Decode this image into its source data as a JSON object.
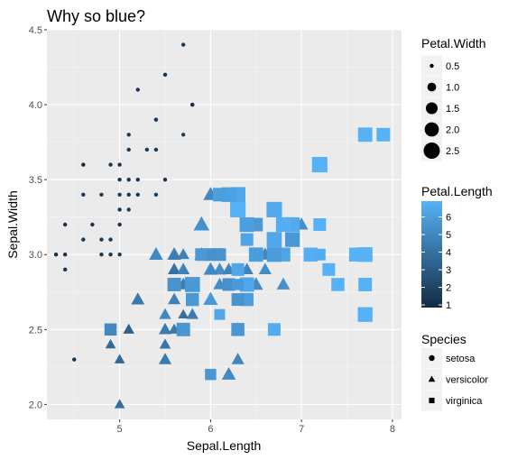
{
  "chart_data": {
    "type": "scatter",
    "title": "Why so blue?",
    "xlabel": "Sepal.Length",
    "ylabel": "Sepal.Width",
    "xlim": [
      4.2,
      8.1
    ],
    "ylim": [
      1.9,
      4.5
    ],
    "xticks": [
      "5",
      "6",
      "7",
      "8"
    ],
    "yticks": [
      "2.0",
      "2.5",
      "3.0",
      "3.5",
      "4.0",
      "4.5"
    ],
    "grid": true,
    "legends": {
      "size": {
        "title": "Petal.Width",
        "labels": [
          "0.5",
          "1.0",
          "1.5",
          "2.0",
          "2.5"
        ],
        "values": [
          0.5,
          1.0,
          1.5,
          2.0,
          2.5
        ]
      },
      "color": {
        "title": "Petal.Length",
        "labels": [
          "6",
          "5",
          "4",
          "3",
          "2",
          "1"
        ],
        "values": [
          6,
          5,
          4,
          3,
          2,
          1
        ],
        "low_color": "#132B43",
        "high_color": "#56B1F7"
      },
      "shape": {
        "title": "Species",
        "labels": [
          "setosa",
          "versicolor",
          "virginica"
        ],
        "shapes": [
          "circle",
          "triangle",
          "square"
        ]
      }
    },
    "legend_position": "right",
    "panel_background": "#ebebeb",
    "grid_color": "#ffffff",
    "series": [
      {
        "species": "setosa",
        "shape": "circle",
        "points": [
          [
            5.7,
            4.4,
            1.5,
            0.4
          ],
          [
            5.4,
            3.9,
            1.3,
            0.4
          ],
          [
            5.8,
            4.0,
            1.2,
            0.2
          ],
          [
            5.2,
            4.1,
            1.5,
            0.1
          ],
          [
            5.5,
            4.2,
            1.4,
            0.2
          ],
          [
            5.4,
            3.9,
            1.7,
            0.4
          ],
          [
            5.1,
            3.8,
            1.6,
            0.2
          ],
          [
            5.7,
            3.8,
            1.7,
            0.3
          ],
          [
            5.3,
            3.7,
            1.5,
            0.2
          ],
          [
            5.1,
            3.7,
            1.5,
            0.4
          ],
          [
            5.4,
            3.7,
            1.5,
            0.2
          ],
          [
            5.0,
            3.6,
            1.4,
            0.2
          ],
          [
            4.6,
            3.6,
            1.0,
            0.2
          ],
          [
            5.1,
            3.5,
            1.4,
            0.2
          ],
          [
            5.0,
            3.5,
            1.3,
            0.3
          ],
          [
            5.2,
            3.5,
            1.5,
            0.2
          ],
          [
            5.5,
            3.5,
            1.3,
            0.2
          ],
          [
            5.1,
            3.4,
            1.5,
            0.2
          ],
          [
            4.8,
            3.4,
            1.6,
            0.2
          ],
          [
            5.0,
            3.4,
            1.6,
            0.4
          ],
          [
            5.4,
            3.4,
            1.7,
            0.2
          ],
          [
            4.6,
            3.4,
            1.4,
            0.3
          ],
          [
            5.0,
            3.3,
            1.4,
            0.2
          ],
          [
            5.1,
            3.3,
            1.7,
            0.5
          ],
          [
            4.7,
            3.2,
            1.3,
            0.2
          ],
          [
            4.6,
            3.1,
            1.5,
            0.2
          ],
          [
            4.9,
            3.1,
            1.5,
            0.1
          ],
          [
            4.8,
            3.1,
            1.6,
            0.2
          ],
          [
            4.4,
            3.2,
            1.3,
            0.2
          ],
          [
            5.0,
            3.2,
            1.2,
            0.2
          ],
          [
            4.4,
            2.9,
            1.4,
            0.2
          ],
          [
            4.3,
            3.0,
            1.1,
            0.1
          ],
          [
            4.4,
            3.0,
            1.3,
            0.2
          ],
          [
            4.8,
            3.0,
            1.4,
            0.1
          ],
          [
            4.9,
            3.0,
            1.4,
            0.2
          ],
          [
            5.0,
            3.0,
            1.6,
            0.2
          ],
          [
            4.5,
            2.3,
            1.3,
            0.3
          ],
          [
            5.8,
            4.0,
            1.2,
            0.2
          ],
          [
            4.9,
            3.6,
            1.4,
            0.1
          ],
          [
            5.2,
            3.4,
            1.4,
            0.2
          ]
        ]
      },
      {
        "species": "versicolor",
        "shape": "triangle",
        "points": [
          [
            7.0,
            3.2,
            4.7,
            1.4
          ],
          [
            6.4,
            3.2,
            4.5,
            1.5
          ],
          [
            6.9,
            3.1,
            4.9,
            1.5
          ],
          [
            5.5,
            2.3,
            4.0,
            1.3
          ],
          [
            6.5,
            2.8,
            4.6,
            1.5
          ],
          [
            5.7,
            2.8,
            4.5,
            1.3
          ],
          [
            6.3,
            3.3,
            4.7,
            1.6
          ],
          [
            4.9,
            2.4,
            3.3,
            1.0
          ],
          [
            6.6,
            2.9,
            4.6,
            1.3
          ],
          [
            5.2,
            2.7,
            3.9,
            1.4
          ],
          [
            5.0,
            2.0,
            3.5,
            1.0
          ],
          [
            5.9,
            3.0,
            4.2,
            1.5
          ],
          [
            6.0,
            2.2,
            4.0,
            1.0
          ],
          [
            6.1,
            2.9,
            4.7,
            1.4
          ],
          [
            5.6,
            2.9,
            3.6,
            1.3
          ],
          [
            6.7,
            3.1,
            4.4,
            1.4
          ],
          [
            5.6,
            3.0,
            4.5,
            1.5
          ],
          [
            5.8,
            2.7,
            4.1,
            1.0
          ],
          [
            6.2,
            2.2,
            4.5,
            1.5
          ],
          [
            5.6,
            2.5,
            3.9,
            1.1
          ],
          [
            5.9,
            3.2,
            4.8,
            1.8
          ],
          [
            6.1,
            2.8,
            4.0,
            1.3
          ],
          [
            6.3,
            2.5,
            4.9,
            1.5
          ],
          [
            6.1,
            2.8,
            4.7,
            1.2
          ],
          [
            6.4,
            2.9,
            4.3,
            1.3
          ],
          [
            6.6,
            3.0,
            4.4,
            1.4
          ],
          [
            6.8,
            2.8,
            4.8,
            1.4
          ],
          [
            6.7,
            3.0,
            5.0,
            1.7
          ],
          [
            6.0,
            2.9,
            4.5,
            1.5
          ],
          [
            5.7,
            2.6,
            3.5,
            1.0
          ],
          [
            5.5,
            2.4,
            3.8,
            1.1
          ],
          [
            5.5,
            2.4,
            3.7,
            1.0
          ],
          [
            5.8,
            2.7,
            3.9,
            1.2
          ],
          [
            6.0,
            2.7,
            5.1,
            1.6
          ],
          [
            5.4,
            3.0,
            4.5,
            1.5
          ],
          [
            6.0,
            3.4,
            4.5,
            1.6
          ],
          [
            6.7,
            3.1,
            4.7,
            1.5
          ],
          [
            6.3,
            2.3,
            4.4,
            1.3
          ],
          [
            5.6,
            3.0,
            4.1,
            1.3
          ],
          [
            5.5,
            2.5,
            4.0,
            1.3
          ],
          [
            5.5,
            2.6,
            4.4,
            1.2
          ],
          [
            6.1,
            3.0,
            4.6,
            1.4
          ],
          [
            5.8,
            2.6,
            4.0,
            1.2
          ],
          [
            5.0,
            2.3,
            3.3,
            1.0
          ],
          [
            5.6,
            2.7,
            4.2,
            1.3
          ],
          [
            5.7,
            3.0,
            4.2,
            1.2
          ],
          [
            5.7,
            2.9,
            4.2,
            1.3
          ],
          [
            6.2,
            2.9,
            4.3,
            1.3
          ],
          [
            5.1,
            2.5,
            3.0,
            1.1
          ],
          [
            5.7,
            2.8,
            4.1,
            1.3
          ]
        ]
      },
      {
        "species": "virginica",
        "shape": "square",
        "points": [
          [
            6.3,
            3.3,
            6.0,
            2.5
          ],
          [
            5.8,
            2.7,
            5.1,
            1.9
          ],
          [
            7.1,
            3.0,
            5.9,
            2.1
          ],
          [
            6.3,
            2.9,
            5.6,
            1.8
          ],
          [
            6.5,
            3.0,
            5.8,
            2.2
          ],
          [
            7.6,
            3.0,
            6.6,
            2.1
          ],
          [
            4.9,
            2.5,
            4.5,
            1.7
          ],
          [
            7.3,
            2.9,
            6.3,
            1.8
          ],
          [
            6.7,
            2.5,
            5.8,
            1.8
          ],
          [
            7.2,
            3.6,
            6.1,
            2.5
          ],
          [
            6.5,
            3.2,
            5.1,
            2.0
          ],
          [
            6.4,
            2.7,
            5.3,
            1.9
          ],
          [
            6.8,
            3.0,
            5.5,
            2.1
          ],
          [
            5.7,
            2.5,
            5.0,
            2.0
          ],
          [
            5.8,
            2.8,
            5.1,
            2.4
          ],
          [
            6.4,
            3.2,
            5.3,
            2.3
          ],
          [
            6.5,
            3.0,
            5.5,
            1.8
          ],
          [
            7.7,
            3.8,
            6.7,
            2.2
          ],
          [
            7.7,
            2.6,
            6.9,
            2.3
          ],
          [
            6.0,
            2.2,
            5.0,
            1.5
          ],
          [
            6.9,
            3.2,
            5.7,
            2.3
          ],
          [
            5.6,
            2.8,
            4.9,
            2.0
          ],
          [
            7.7,
            2.8,
            6.7,
            2.0
          ],
          [
            6.3,
            2.7,
            4.9,
            1.8
          ],
          [
            6.7,
            3.3,
            5.7,
            2.1
          ],
          [
            7.2,
            3.2,
            6.0,
            1.8
          ],
          [
            6.2,
            2.8,
            4.8,
            1.8
          ],
          [
            6.1,
            3.0,
            4.9,
            1.8
          ],
          [
            6.4,
            2.8,
            5.6,
            2.1
          ],
          [
            7.2,
            3.0,
            5.8,
            1.6
          ],
          [
            7.4,
            2.8,
            6.1,
            1.9
          ],
          [
            7.9,
            3.8,
            6.4,
            2.0
          ],
          [
            6.4,
            2.8,
            5.6,
            2.2
          ],
          [
            6.3,
            2.8,
            5.1,
            1.5
          ],
          [
            6.1,
            2.6,
            5.6,
            1.4
          ],
          [
            7.7,
            3.0,
            6.1,
            2.3
          ],
          [
            6.3,
            3.4,
            5.6,
            2.4
          ],
          [
            6.4,
            3.1,
            5.5,
            1.8
          ],
          [
            6.0,
            3.0,
            4.8,
            1.8
          ],
          [
            6.9,
            3.1,
            5.4,
            2.1
          ],
          [
            6.7,
            3.1,
            5.6,
            2.4
          ],
          [
            6.9,
            3.1,
            5.1,
            2.3
          ],
          [
            6.8,
            3.2,
            5.9,
            2.3
          ],
          [
            6.7,
            3.3,
            5.7,
            2.5
          ],
          [
            6.7,
            3.0,
            5.2,
            2.3
          ],
          [
            6.3,
            2.5,
            5.0,
            1.9
          ],
          [
            6.5,
            3.0,
            5.2,
            2.0
          ],
          [
            6.2,
            3.4,
            5.4,
            2.3
          ],
          [
            5.9,
            3.0,
            5.1,
            1.8
          ],
          [
            6.1,
            3.4,
            5.3,
            2.0
          ]
        ]
      }
    ],
    "point_fields": [
      "Sepal.Length",
      "Sepal.Width",
      "Petal.Length",
      "Petal.Width"
    ]
  }
}
